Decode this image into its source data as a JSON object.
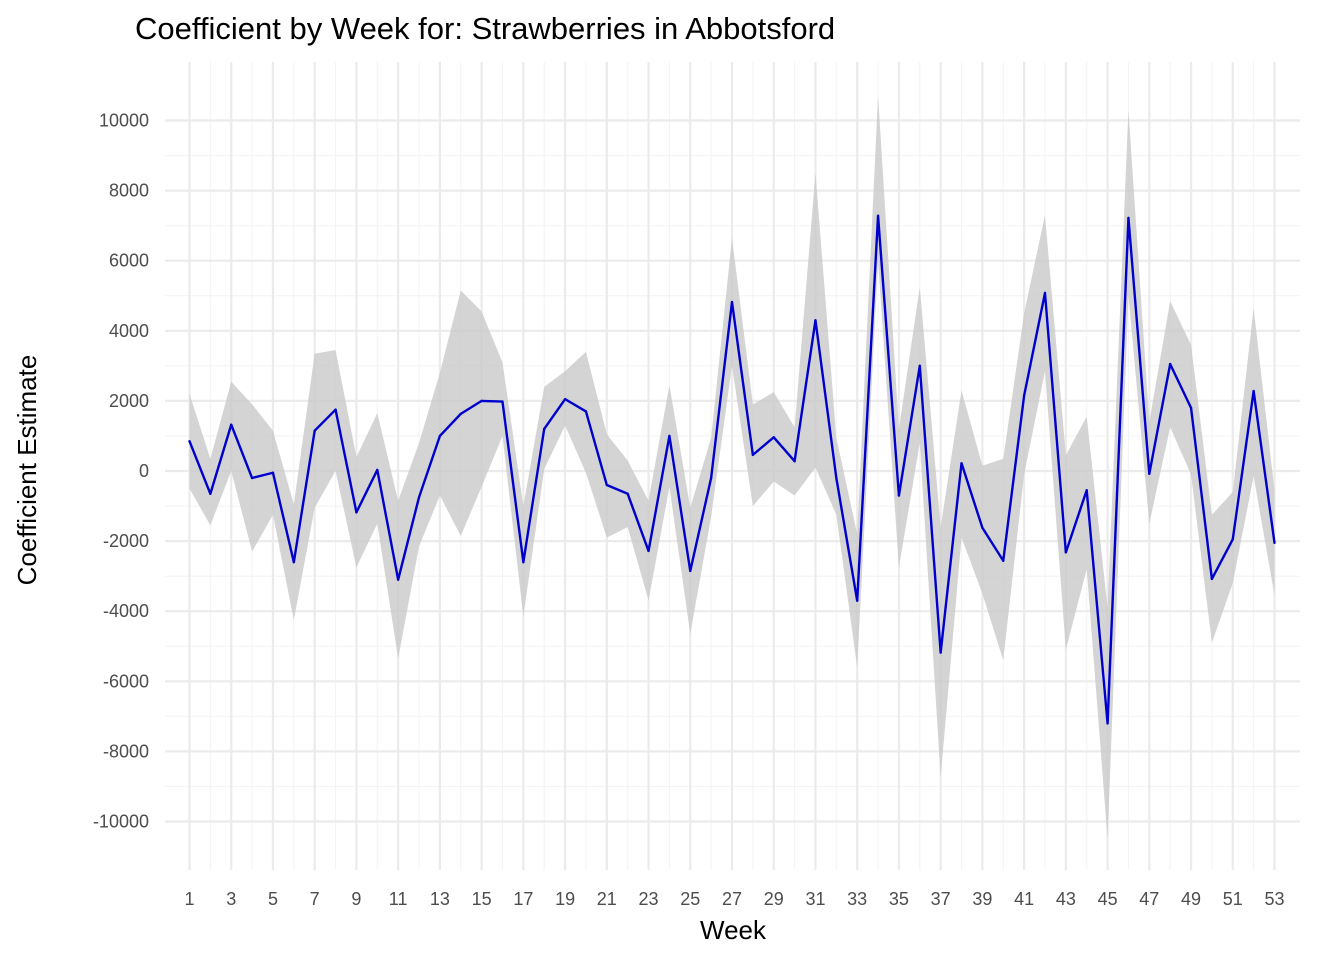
{
  "chart_data": {
    "type": "line",
    "title": "Coefficient by Week for: Strawberries in Abbotsford",
    "xlabel": "Week",
    "ylabel": "Coefficient Estimate",
    "xlim": [
      1,
      53
    ],
    "ylim": [
      -11000,
      11000
    ],
    "x_ticks": [
      1,
      3,
      5,
      7,
      9,
      11,
      13,
      15,
      17,
      19,
      21,
      23,
      25,
      27,
      29,
      31,
      33,
      35,
      37,
      39,
      41,
      43,
      45,
      47,
      49,
      51,
      53
    ],
    "y_ticks": [
      -10000,
      -8000,
      -6000,
      -4000,
      -2000,
      0,
      2000,
      4000,
      6000,
      8000,
      10000
    ],
    "grid": true,
    "line_color": "#0000cd",
    "ribbon_color": "#c8c8c8",
    "x": [
      1,
      2,
      3,
      4,
      5,
      6,
      7,
      8,
      9,
      10,
      11,
      12,
      13,
      14,
      15,
      16,
      17,
      18,
      19,
      20,
      21,
      22,
      23,
      24,
      25,
      26,
      27,
      28,
      29,
      30,
      31,
      32,
      33,
      34,
      35,
      36,
      37,
      38,
      39,
      40,
      41,
      42,
      43,
      44,
      45,
      46,
      47,
      48,
      49,
      50,
      51,
      52,
      53
    ],
    "series": [
      {
        "values": [
          850,
          -650,
          1320,
          -200,
          -50,
          -2600,
          1150,
          1750,
          -1180,
          30,
          -3100,
          -750,
          1000,
          1630,
          2000,
          1980,
          -2600,
          1200,
          2050,
          1700,
          -400,
          -650,
          -2280,
          1000,
          -2850,
          -200,
          4820,
          460,
          960,
          280,
          4300,
          -200,
          -3700,
          7280,
          -700,
          3000,
          -5180,
          220,
          -1620,
          -2560,
          2150,
          5080,
          -2320,
          -550,
          -7200,
          7220,
          -80,
          3050,
          1800,
          -3080,
          -1950,
          2280,
          -2050
        ],
        "lower": [
          -500,
          -1550,
          0,
          -2300,
          -1250,
          -4250,
          -1050,
          0,
          -2750,
          -1500,
          -5350,
          -2150,
          -700,
          -1850,
          -450,
          1000,
          -4150,
          50,
          1300,
          -50,
          -1900,
          -1600,
          -3700,
          -450,
          -4650,
          -1300,
          3000,
          -1000,
          -300,
          -700,
          100,
          -1250,
          -5600,
          6000,
          -2750,
          800,
          -8750,
          -1900,
          -3500,
          -5400,
          -100,
          2850,
          -5100,
          -2800,
          -10500,
          5000,
          -1500,
          1250,
          -100,
          -4900,
          -3200,
          -150,
          -3550
        ],
        "upper": [
          2200,
          350,
          2550,
          1900,
          1150,
          -950,
          3350,
          3450,
          400,
          1650,
          -850,
          800,
          2800,
          5150,
          4550,
          3100,
          -1000,
          2400,
          2850,
          3400,
          1050,
          300,
          -850,
          2450,
          -1050,
          950,
          6650,
          1900,
          2250,
          1250,
          8500,
          950,
          -1800,
          10700,
          1200,
          5250,
          -1600,
          2300,
          150,
          350,
          4500,
          7300,
          450,
          1550,
          -3900,
          10300,
          1400,
          4850,
          3600,
          -1250,
          -600,
          4650,
          -550
        ]
      }
    ]
  }
}
